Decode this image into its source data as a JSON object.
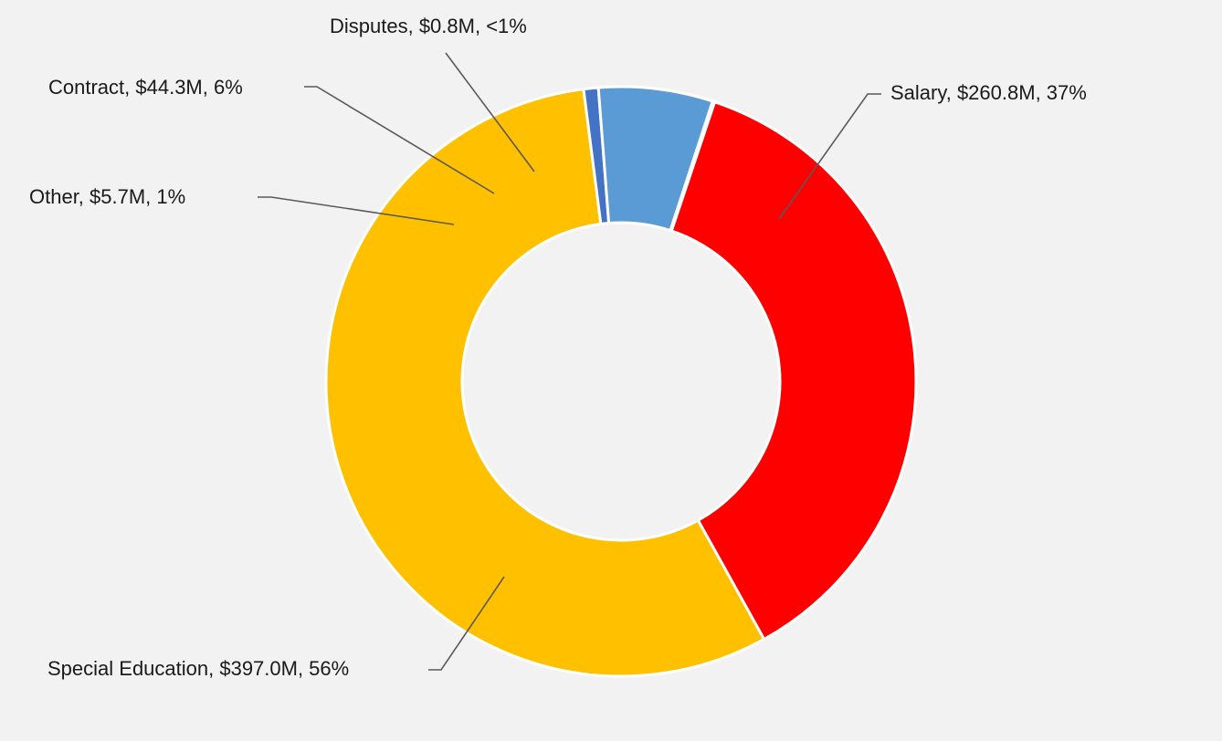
{
  "chart_data": {
    "type": "pie",
    "variant": "donut",
    "title": "",
    "categories": [
      "Salary",
      "Special Education",
      "Other",
      "Contract",
      "Disputes"
    ],
    "series": [
      {
        "values": [
          260.8,
          397.0,
          5.7,
          44.3,
          0.8
        ],
        "value_labels": [
          "$260.8M",
          "$397.0M",
          "$5.7M",
          "$44.3M",
          "$0.8M"
        ],
        "percent_labels": [
          "37%",
          "56%",
          "1%",
          "6%",
          "<1%"
        ]
      }
    ],
    "colors": [
      "#ff0000",
      "#ffc000",
      "#4472c4",
      "#5b9bd5",
      "#5b9bd5"
    ],
    "legend": "none",
    "data_labels": [
      "Salary, $260.8M, 37%",
      "Special Education, $397.0M, 56%",
      "Other, $5.7M, 1%",
      "Contract, $44.3M, 6%",
      "Disputes, $0.8M, <1%"
    ]
  }
}
